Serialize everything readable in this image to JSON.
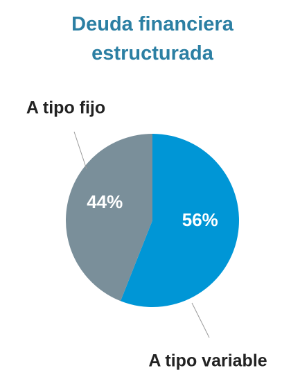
{
  "chart_data": {
    "type": "pie",
    "title": "Deuda financiera estructurada",
    "categories": [
      "A tipo variable",
      "A tipo fijo"
    ],
    "values": [
      56,
      44
    ],
    "value_labels": [
      "56%",
      "44%"
    ],
    "colors": [
      "#0096d6",
      "#7a8f9a"
    ]
  }
}
